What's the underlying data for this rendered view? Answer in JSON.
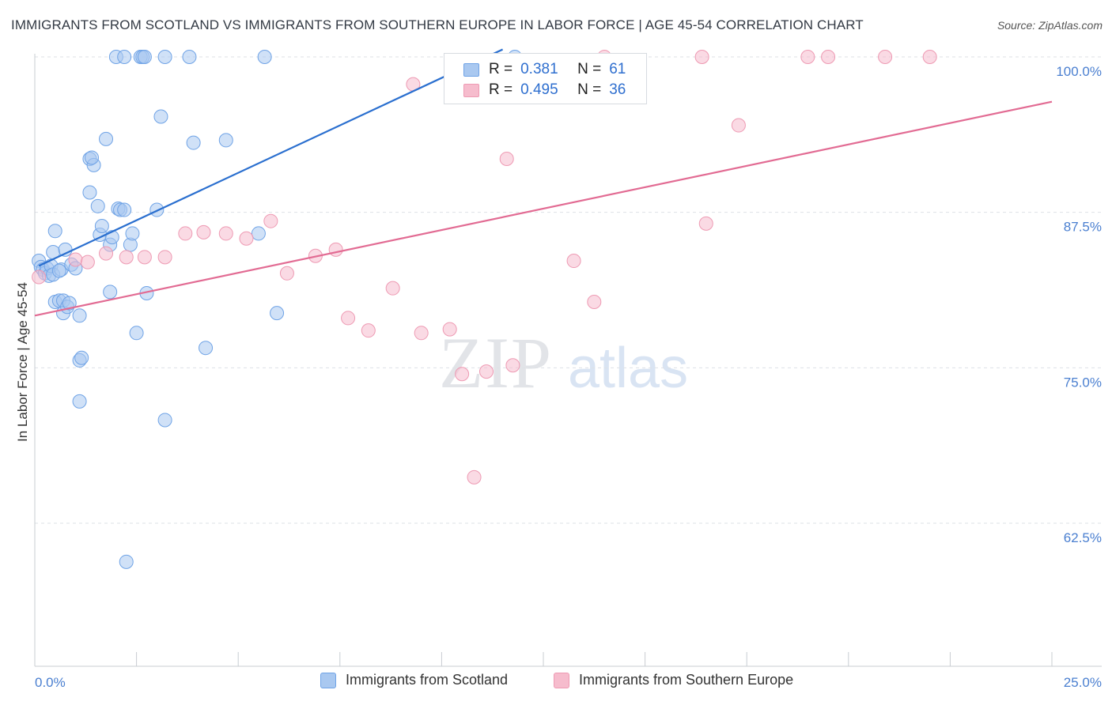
{
  "title": "IMMIGRANTS FROM SCOTLAND VS IMMIGRANTS FROM SOUTHERN EUROPE IN LABOR FORCE | AGE 45-54 CORRELATION CHART",
  "source": "Source: ZipAtlas.com",
  "watermark": {
    "zip": "ZIP",
    "atlas": "atlas"
  },
  "legend_top": {
    "rows": [
      {
        "r_label": "R =",
        "r_value": "0.381",
        "n_label": "N =",
        "n_value": "61",
        "color": "#a9c8f0"
      },
      {
        "r_label": "R =",
        "r_value": "0.495",
        "n_label": "N =",
        "n_value": "36",
        "color": "#f6bccd"
      }
    ]
  },
  "legend_bottom": {
    "items": [
      {
        "label": "Immigrants from Scotland",
        "color": "#a9c8f0"
      },
      {
        "label": "Immigrants from Southern Europe",
        "color": "#f6bccd"
      }
    ]
  },
  "chart_data": {
    "type": "scatter",
    "ylabel": "In Labor Force | Age 45-54",
    "xlim": [
      0,
      25
    ],
    "ylim": [
      51,
      100
    ],
    "x_tick_labels": {
      "left": "0.0%",
      "right": "25.0%"
    },
    "y_ticks": [
      {
        "value": 100,
        "label": "100.0%"
      },
      {
        "value": 87.5,
        "label": "87.5%"
      },
      {
        "value": 75,
        "label": "75.0%"
      },
      {
        "value": 62.5,
        "label": "62.5%"
      }
    ],
    "grid": true,
    "series": [
      {
        "name": "Immigrants from Scotland",
        "color": "#6fa3e6",
        "fill": "#a9c8f0",
        "trend": {
          "x": [
            0.1,
            11.5
          ],
          "y": [
            83.2,
            100.6
          ],
          "color": "#2a6fcf"
        },
        "points": [
          [
            0.1,
            83.6
          ],
          [
            0.15,
            83.1
          ],
          [
            0.2,
            82.9
          ],
          [
            0.25,
            82.6
          ],
          [
            0.3,
            83.0
          ],
          [
            0.35,
            82.4
          ],
          [
            0.4,
            83.2
          ],
          [
            0.45,
            82.5
          ],
          [
            0.45,
            84.3
          ],
          [
            0.5,
            86.0
          ],
          [
            0.5,
            80.3
          ],
          [
            0.6,
            80.4
          ],
          [
            0.65,
            82.9
          ],
          [
            0.7,
            80.4
          ],
          [
            0.7,
            79.4
          ],
          [
            0.75,
            84.5
          ],
          [
            0.8,
            79.9
          ],
          [
            0.85,
            80.2
          ],
          [
            0.9,
            83.3
          ],
          [
            1.0,
            83.0
          ],
          [
            1.1,
            79.2
          ],
          [
            1.1,
            75.6
          ],
          [
            1.15,
            75.8
          ],
          [
            1.1,
            72.3
          ],
          [
            1.35,
            91.8
          ],
          [
            1.35,
            89.1
          ],
          [
            1.45,
            91.3
          ],
          [
            1.55,
            88.0
          ],
          [
            1.6,
            85.7
          ],
          [
            1.65,
            86.4
          ],
          [
            1.75,
            93.4
          ],
          [
            1.85,
            81.1
          ],
          [
            1.85,
            84.9
          ],
          [
            1.9,
            85.5
          ],
          [
            2.0,
            100.0
          ],
          [
            2.05,
            87.8
          ],
          [
            2.1,
            87.7
          ],
          [
            2.2,
            87.7
          ],
          [
            2.35,
            84.9
          ],
          [
            2.4,
            85.8
          ],
          [
            2.5,
            77.8
          ],
          [
            2.6,
            100.0
          ],
          [
            2.65,
            100.0
          ],
          [
            2.7,
            100.0
          ],
          [
            2.75,
            81.0
          ],
          [
            3.0,
            87.7
          ],
          [
            3.1,
            95.2
          ],
          [
            3.2,
            70.8
          ],
          [
            3.2,
            100.0
          ],
          [
            3.8,
            100.0
          ],
          [
            3.9,
            93.1
          ],
          [
            4.2,
            76.6
          ],
          [
            4.7,
            93.3
          ],
          [
            5.5,
            85.8
          ],
          [
            5.65,
            100.0
          ],
          [
            5.95,
            79.4
          ],
          [
            11.8,
            100.0
          ],
          [
            2.2,
            100.0
          ],
          [
            1.4,
            91.9
          ],
          [
            0.6,
            82.8
          ],
          [
            2.25,
            59.4
          ]
        ]
      },
      {
        "name": "Immigrants from Southern Europe",
        "color": "#ee9ab3",
        "fill": "#f6bccd",
        "trend": {
          "x": [
            0,
            25
          ],
          "y": [
            79.2,
            96.4
          ],
          "color": "#e26b93"
        },
        "points": [
          [
            0.1,
            82.3
          ],
          [
            1.0,
            83.7
          ],
          [
            1.3,
            83.5
          ],
          [
            1.75,
            84.2
          ],
          [
            2.25,
            83.9
          ],
          [
            2.7,
            83.9
          ],
          [
            3.2,
            83.9
          ],
          [
            3.7,
            85.8
          ],
          [
            4.15,
            85.9
          ],
          [
            4.7,
            85.8
          ],
          [
            5.2,
            85.4
          ],
          [
            5.8,
            86.8
          ],
          [
            6.2,
            82.6
          ],
          [
            6.9,
            84.0
          ],
          [
            7.4,
            84.5
          ],
          [
            7.7,
            79.0
          ],
          [
            8.2,
            78.0
          ],
          [
            8.8,
            81.4
          ],
          [
            9.3,
            97.8
          ],
          [
            9.5,
            77.8
          ],
          [
            10.2,
            78.1
          ],
          [
            10.5,
            74.5
          ],
          [
            10.8,
            66.2
          ],
          [
            11.1,
            74.7
          ],
          [
            11.6,
            91.8
          ],
          [
            11.75,
            75.2
          ],
          [
            13.25,
            83.6
          ],
          [
            13.75,
            80.3
          ],
          [
            14.0,
            100.0
          ],
          [
            16.4,
            100.0
          ],
          [
            16.5,
            86.6
          ],
          [
            17.3,
            94.5
          ],
          [
            19.0,
            100.0
          ],
          [
            19.5,
            100.0
          ],
          [
            20.9,
            100.0
          ],
          [
            22.0,
            100.0
          ]
        ]
      }
    ]
  }
}
